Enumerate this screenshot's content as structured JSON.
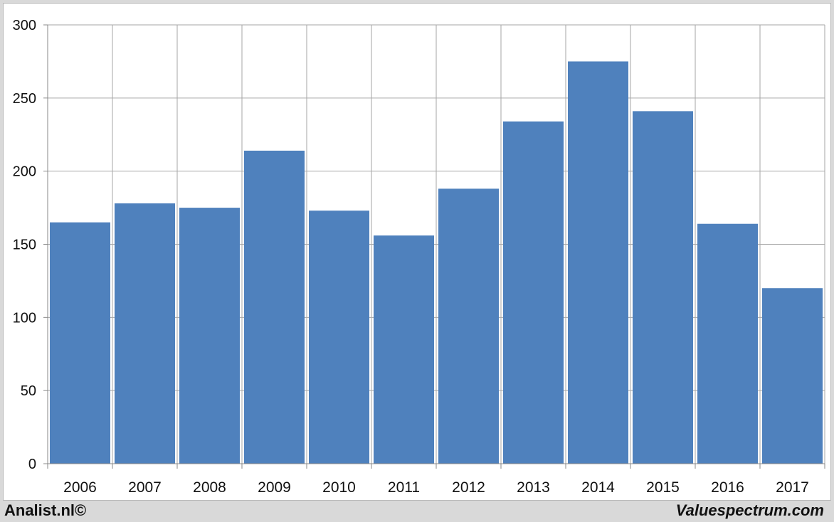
{
  "chart_data": {
    "type": "bar",
    "title": "",
    "xlabel": "",
    "ylabel": "",
    "categories": [
      "2006",
      "2007",
      "2008",
      "2009",
      "2010",
      "2011",
      "2012",
      "2013",
      "2014",
      "2015",
      "2016",
      "2017"
    ],
    "values": [
      165,
      178,
      175,
      214,
      173,
      156,
      188,
      234,
      275,
      241,
      164,
      120
    ],
    "ylim": [
      0,
      300
    ],
    "yticks": [
      0,
      50,
      100,
      150,
      200,
      250,
      300
    ],
    "grid": true,
    "bar_color": "#4f81bd",
    "grid_color": "#a6a6a6"
  },
  "footer": {
    "left": "Analist.nl©",
    "right": "Valuespectrum.com"
  }
}
